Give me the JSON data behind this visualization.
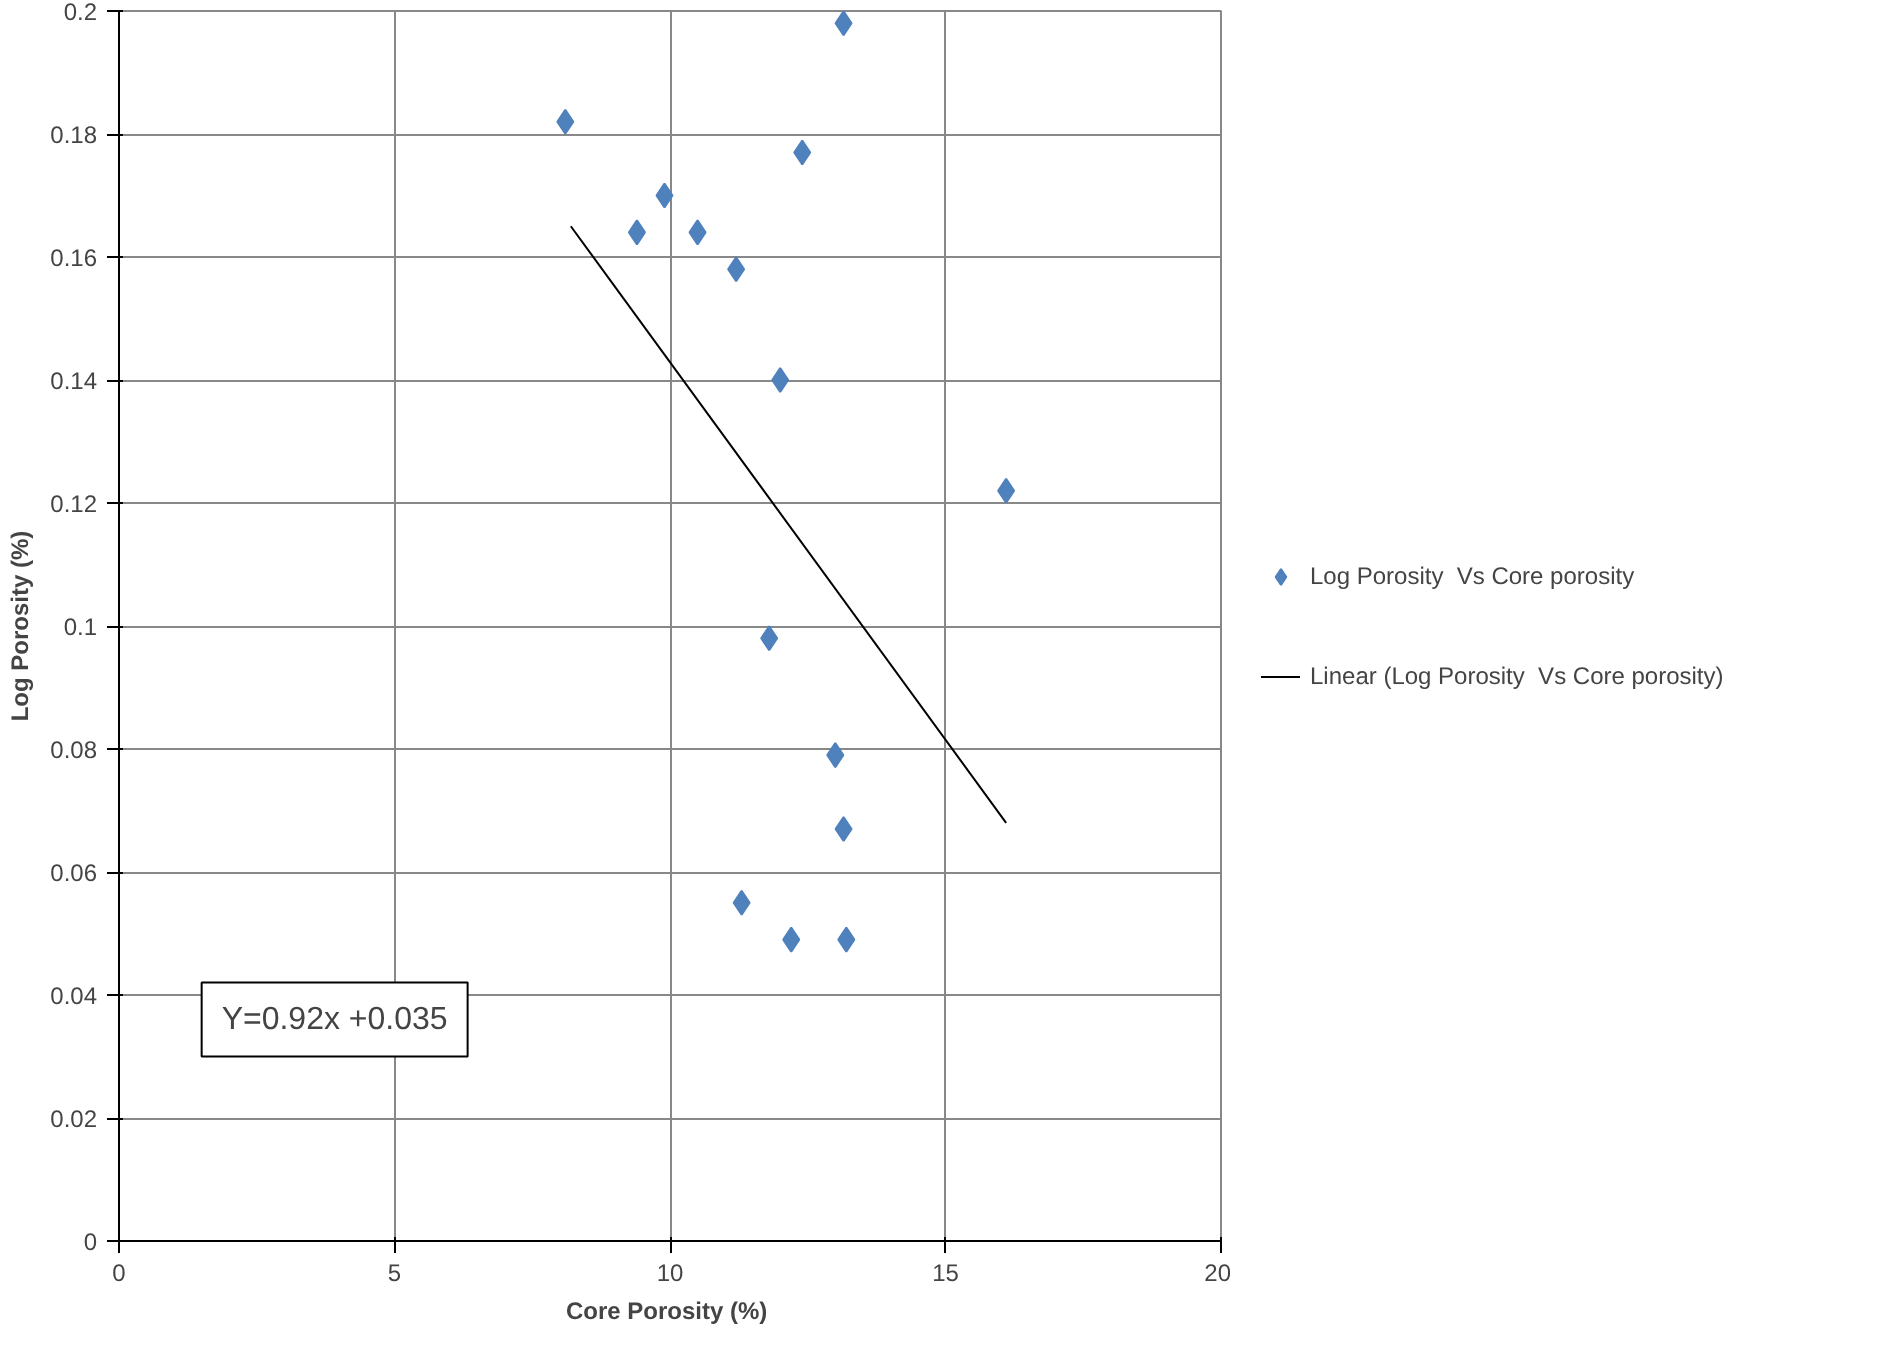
{
  "chart_data": {
    "type": "scatter",
    "xlabel": "Core Porosity  (%)",
    "ylabel": "Log Porosity (%)",
    "xlim": [
      0,
      20
    ],
    "xticks": [
      0,
      5,
      10,
      15,
      20
    ],
    "ylim": [
      0,
      0.2
    ],
    "yticks": [
      0,
      0.02,
      0.04,
      0.06,
      0.08,
      0.1,
      0.12,
      0.14,
      0.16,
      0.18,
      0.2
    ],
    "grid": true,
    "legend": "right",
    "series": [
      {
        "name": "Log Porosity  Vs Core porosity",
        "marker": "diamond",
        "color": "#4f81bd",
        "x": [
          8.1,
          13.15,
          12.4,
          9.9,
          9.4,
          10.5,
          11.2,
          12.0,
          16.1,
          11.8,
          13.0,
          13.15,
          11.3,
          12.2,
          13.2
        ],
        "values": [
          0.182,
          0.198,
          0.177,
          0.17,
          0.164,
          0.164,
          0.158,
          0.14,
          0.122,
          0.098,
          0.079,
          0.067,
          0.055,
          0.049,
          0.049
        ]
      },
      {
        "name": "Linear (Log Porosity  Vs Core porosity)",
        "type": "line",
        "marker": "none",
        "color": "#000000",
        "x": [
          8.2,
          16.1
        ],
        "values": [
          0.165,
          0.068
        ]
      }
    ],
    "annotations": [
      "Y=0.92x +0.035"
    ]
  }
}
